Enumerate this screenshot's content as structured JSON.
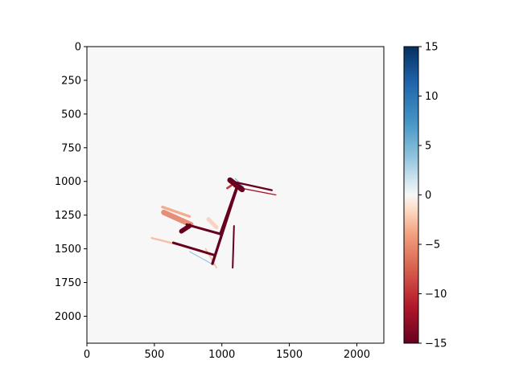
{
  "chart_data": {
    "type": "heatmap",
    "title": "",
    "xlabel": "",
    "ylabel": "",
    "xlim": [
      0,
      2200
    ],
    "ylim": [
      2200,
      0
    ],
    "y_inverted": true,
    "x_ticks": [
      "0",
      "500",
      "1000",
      "1500",
      "2000"
    ],
    "x_tick_values": [
      0,
      500,
      1000,
      1500,
      2000
    ],
    "y_ticks": [
      "0",
      "250",
      "500",
      "750",
      "1000",
      "1250",
      "1500",
      "1750",
      "2000"
    ],
    "y_tick_values": [
      0,
      250,
      500,
      750,
      1000,
      1250,
      1500,
      1750,
      2000
    ],
    "colormap": "RdBu",
    "background_value": 0,
    "colorbar": {
      "range": [
        -15,
        15
      ],
      "ticks": [
        "−15",
        "−10",
        "−5",
        "0",
        "5",
        "10",
        "15"
      ],
      "tick_values": [
        -15,
        -10,
        -5,
        0,
        5,
        10,
        15
      ]
    },
    "features": [
      {
        "kind": "band",
        "value": -15,
        "from": [
          740,
          1320
        ],
        "to": [
          990,
          1390
        ],
        "width": 18
      },
      {
        "kind": "band",
        "value": -15,
        "from": [
          990,
          1390
        ],
        "to": [
          1120,
          1020
        ],
        "width": 22
      },
      {
        "kind": "band",
        "value": -15,
        "from": [
          1120,
          1020
        ],
        "to": [
          930,
          1610
        ],
        "width": 20
      },
      {
        "kind": "band",
        "value": -15,
        "from": [
          640,
          1455
        ],
        "to": [
          940,
          1545
        ],
        "width": 18
      },
      {
        "kind": "band",
        "value": -15,
        "from": [
          1050,
          995
        ],
        "to": [
          1370,
          1065
        ],
        "width": 14
      },
      {
        "kind": "band",
        "value": -15,
        "from": [
          1090,
          1330
        ],
        "to": [
          1080,
          1640
        ],
        "width": 12
      },
      {
        "kind": "band",
        "value": -13,
        "from": [
          1090,
          1040
        ],
        "to": [
          1400,
          1100
        ],
        "width": 8
      },
      {
        "kind": "band",
        "value": -15,
        "from": [
          700,
          1370
        ],
        "to": [
          760,
          1330
        ],
        "width": 34
      },
      {
        "kind": "band",
        "value": -15,
        "from": [
          1060,
          990
        ],
        "to": [
          1150,
          1060
        ],
        "width": 40
      },
      {
        "kind": "band",
        "value": -6,
        "from": [
          570,
          1230
        ],
        "to": [
          770,
          1320
        ],
        "width": 40
      },
      {
        "kind": "band",
        "value": -4,
        "from": [
          560,
          1190
        ],
        "to": [
          760,
          1260
        ],
        "width": 20
      },
      {
        "kind": "band",
        "value": -3,
        "from": [
          480,
          1420
        ],
        "to": [
          680,
          1470
        ],
        "width": 14
      },
      {
        "kind": "band",
        "value": -3,
        "from": [
          880,
          1500
        ],
        "to": [
          960,
          1640
        ],
        "width": 10
      },
      {
        "kind": "band",
        "value": -10,
        "from": [
          1040,
          1050
        ],
        "to": [
          1100,
          1010
        ],
        "width": 16
      },
      {
        "kind": "band",
        "value": 5,
        "from": [
          760,
          1520
        ],
        "to": [
          940,
          1620
        ],
        "width": 6
      },
      {
        "kind": "band",
        "value": 5,
        "from": [
          1100,
          980
        ],
        "to": [
          1160,
          1040
        ],
        "width": 8
      },
      {
        "kind": "band",
        "value": -2,
        "from": [
          900,
          1280
        ],
        "to": [
          960,
          1340
        ],
        "width": 30
      }
    ]
  }
}
